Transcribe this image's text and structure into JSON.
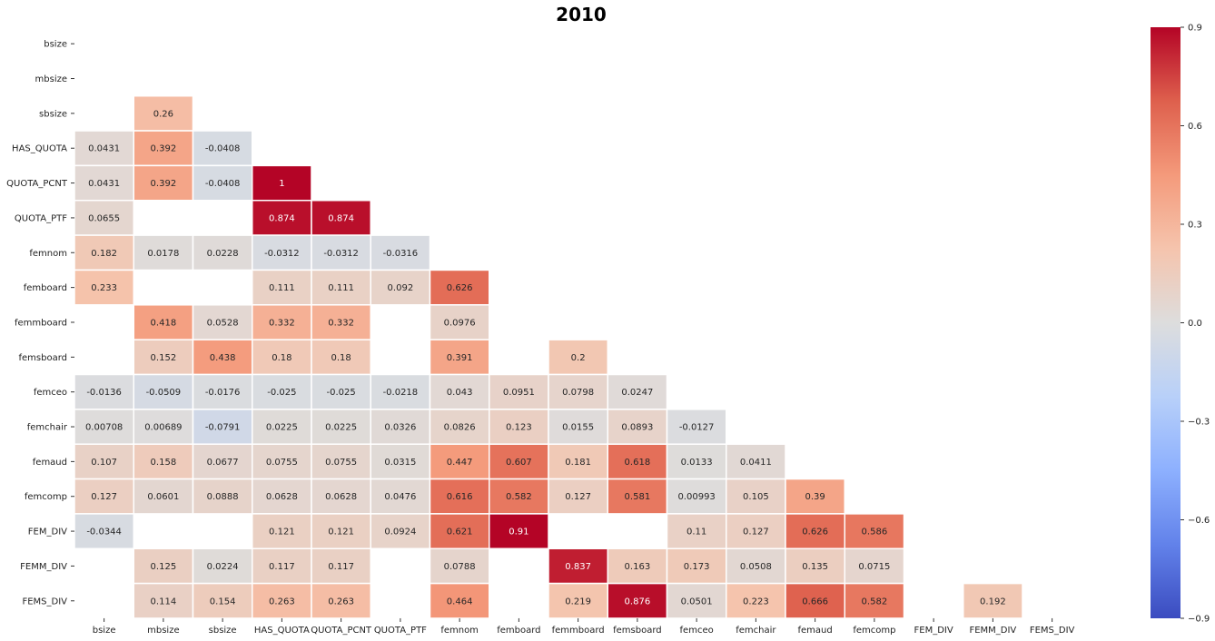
{
  "chart_data": {
    "type": "heatmap",
    "title": "2010",
    "variables": [
      "bsize",
      "mbsize",
      "sbsize",
      "HAS_QUOTA",
      "QUOTA_PCNT",
      "QUOTA_PTF",
      "femnom",
      "femboard",
      "femmboard",
      "femsboard",
      "femceo",
      "femchair",
      "femaud",
      "femcomp",
      "FEM_DIV",
      "FEMM_DIV",
      "FEMS_DIV"
    ],
    "xlabel": "",
    "ylabel": "",
    "colormap": "coolwarm",
    "vmin": -0.9,
    "vmax": 0.9,
    "colorbar_ticks": [
      "0.9",
      "0.6",
      "0.3",
      "0.0",
      "−0.3",
      "−0.6",
      "−0.9"
    ],
    "colorbar_tick_values": [
      0.9,
      0.6,
      0.3,
      0.0,
      -0.3,
      -0.6,
      -0.9
    ],
    "masked": "upper triangle, diagonal, and cells not shown",
    "cells": [
      {
        "row": 2,
        "col": 1,
        "value": 0.26,
        "label": "0.26"
      },
      {
        "row": 3,
        "col": 0,
        "value": 0.0431,
        "label": "0.0431"
      },
      {
        "row": 3,
        "col": 1,
        "value": 0.392,
        "label": "0.392"
      },
      {
        "row": 3,
        "col": 2,
        "value": -0.0408,
        "label": "-0.0408"
      },
      {
        "row": 4,
        "col": 0,
        "value": 0.0431,
        "label": "0.0431"
      },
      {
        "row": 4,
        "col": 1,
        "value": 0.392,
        "label": "0.392"
      },
      {
        "row": 4,
        "col": 2,
        "value": -0.0408,
        "label": "-0.0408"
      },
      {
        "row": 4,
        "col": 3,
        "value": 1,
        "label": "1"
      },
      {
        "row": 5,
        "col": 0,
        "value": 0.0655,
        "label": "0.0655"
      },
      {
        "row": 5,
        "col": 3,
        "value": 0.874,
        "label": "0.874"
      },
      {
        "row": 5,
        "col": 4,
        "value": 0.874,
        "label": "0.874"
      },
      {
        "row": 6,
        "col": 0,
        "value": 0.182,
        "label": "0.182"
      },
      {
        "row": 6,
        "col": 1,
        "value": 0.0178,
        "label": "0.0178"
      },
      {
        "row": 6,
        "col": 2,
        "value": 0.0228,
        "label": "0.0228"
      },
      {
        "row": 6,
        "col": 3,
        "value": -0.0312,
        "label": "-0.0312"
      },
      {
        "row": 6,
        "col": 4,
        "value": -0.0312,
        "label": "-0.0312"
      },
      {
        "row": 6,
        "col": 5,
        "value": -0.0316,
        "label": "-0.0316"
      },
      {
        "row": 7,
        "col": 0,
        "value": 0.233,
        "label": "0.233"
      },
      {
        "row": 7,
        "col": 3,
        "value": 0.111,
        "label": "0.111"
      },
      {
        "row": 7,
        "col": 4,
        "value": 0.111,
        "label": "0.111"
      },
      {
        "row": 7,
        "col": 5,
        "value": 0.092,
        "label": "0.092"
      },
      {
        "row": 7,
        "col": 6,
        "value": 0.626,
        "label": "0.626"
      },
      {
        "row": 8,
        "col": 1,
        "value": 0.418,
        "label": "0.418"
      },
      {
        "row": 8,
        "col": 2,
        "value": 0.0528,
        "label": "0.0528"
      },
      {
        "row": 8,
        "col": 3,
        "value": 0.332,
        "label": "0.332"
      },
      {
        "row": 8,
        "col": 4,
        "value": 0.332,
        "label": "0.332"
      },
      {
        "row": 8,
        "col": 6,
        "value": 0.0976,
        "label": "0.0976"
      },
      {
        "row": 9,
        "col": 1,
        "value": 0.152,
        "label": "0.152"
      },
      {
        "row": 9,
        "col": 2,
        "value": 0.438,
        "label": "0.438"
      },
      {
        "row": 9,
        "col": 3,
        "value": 0.18,
        "label": "0.18"
      },
      {
        "row": 9,
        "col": 4,
        "value": 0.18,
        "label": "0.18"
      },
      {
        "row": 9,
        "col": 6,
        "value": 0.391,
        "label": "0.391"
      },
      {
        "row": 9,
        "col": 8,
        "value": 0.2,
        "label": "0.2"
      },
      {
        "row": 10,
        "col": 0,
        "value": -0.0136,
        "label": "-0.0136"
      },
      {
        "row": 10,
        "col": 1,
        "value": -0.0509,
        "label": "-0.0509"
      },
      {
        "row": 10,
        "col": 2,
        "value": -0.0176,
        "label": "-0.0176"
      },
      {
        "row": 10,
        "col": 3,
        "value": -0.025,
        "label": "-0.025"
      },
      {
        "row": 10,
        "col": 4,
        "value": -0.025,
        "label": "-0.025"
      },
      {
        "row": 10,
        "col": 5,
        "value": -0.0218,
        "label": "-0.0218"
      },
      {
        "row": 10,
        "col": 6,
        "value": 0.043,
        "label": "0.043"
      },
      {
        "row": 10,
        "col": 7,
        "value": 0.0951,
        "label": "0.0951"
      },
      {
        "row": 10,
        "col": 8,
        "value": 0.0798,
        "label": "0.0798"
      },
      {
        "row": 10,
        "col": 9,
        "value": 0.0247,
        "label": "0.0247"
      },
      {
        "row": 11,
        "col": 0,
        "value": 0.00708,
        "label": "0.00708"
      },
      {
        "row": 11,
        "col": 1,
        "value": 0.00689,
        "label": "0.00689"
      },
      {
        "row": 11,
        "col": 2,
        "value": -0.0791,
        "label": "-0.0791"
      },
      {
        "row": 11,
        "col": 3,
        "value": 0.0225,
        "label": "0.0225"
      },
      {
        "row": 11,
        "col": 4,
        "value": 0.0225,
        "label": "0.0225"
      },
      {
        "row": 11,
        "col": 5,
        "value": 0.0326,
        "label": "0.0326"
      },
      {
        "row": 11,
        "col": 6,
        "value": 0.0826,
        "label": "0.0826"
      },
      {
        "row": 11,
        "col": 7,
        "value": 0.123,
        "label": "0.123"
      },
      {
        "row": 11,
        "col": 8,
        "value": 0.0155,
        "label": "0.0155"
      },
      {
        "row": 11,
        "col": 9,
        "value": 0.0893,
        "label": "0.0893"
      },
      {
        "row": 11,
        "col": 10,
        "value": -0.0127,
        "label": "-0.0127"
      },
      {
        "row": 12,
        "col": 0,
        "value": 0.107,
        "label": "0.107"
      },
      {
        "row": 12,
        "col": 1,
        "value": 0.158,
        "label": "0.158"
      },
      {
        "row": 12,
        "col": 2,
        "value": 0.0677,
        "label": "0.0677"
      },
      {
        "row": 12,
        "col": 3,
        "value": 0.0755,
        "label": "0.0755"
      },
      {
        "row": 12,
        "col": 4,
        "value": 0.0755,
        "label": "0.0755"
      },
      {
        "row": 12,
        "col": 5,
        "value": 0.0315,
        "label": "0.0315"
      },
      {
        "row": 12,
        "col": 6,
        "value": 0.447,
        "label": "0.447"
      },
      {
        "row": 12,
        "col": 7,
        "value": 0.607,
        "label": "0.607"
      },
      {
        "row": 12,
        "col": 8,
        "value": 0.181,
        "label": "0.181"
      },
      {
        "row": 12,
        "col": 9,
        "value": 0.618,
        "label": "0.618"
      },
      {
        "row": 12,
        "col": 10,
        "value": 0.0133,
        "label": "0.0133"
      },
      {
        "row": 12,
        "col": 11,
        "value": 0.0411,
        "label": "0.0411"
      },
      {
        "row": 13,
        "col": 0,
        "value": 0.127,
        "label": "0.127"
      },
      {
        "row": 13,
        "col": 1,
        "value": 0.0601,
        "label": "0.0601"
      },
      {
        "row": 13,
        "col": 2,
        "value": 0.0888,
        "label": "0.0888"
      },
      {
        "row": 13,
        "col": 3,
        "value": 0.0628,
        "label": "0.0628"
      },
      {
        "row": 13,
        "col": 4,
        "value": 0.0628,
        "label": "0.0628"
      },
      {
        "row": 13,
        "col": 5,
        "value": 0.0476,
        "label": "0.0476"
      },
      {
        "row": 13,
        "col": 6,
        "value": 0.616,
        "label": "0.616"
      },
      {
        "row": 13,
        "col": 7,
        "value": 0.582,
        "label": "0.582"
      },
      {
        "row": 13,
        "col": 8,
        "value": 0.127,
        "label": "0.127"
      },
      {
        "row": 13,
        "col": 9,
        "value": 0.581,
        "label": "0.581"
      },
      {
        "row": 13,
        "col": 10,
        "value": 0.00993,
        "label": "0.00993"
      },
      {
        "row": 13,
        "col": 11,
        "value": 0.105,
        "label": "0.105"
      },
      {
        "row": 13,
        "col": 12,
        "value": 0.39,
        "label": "0.39"
      },
      {
        "row": 14,
        "col": 0,
        "value": -0.0344,
        "label": "-0.0344"
      },
      {
        "row": 14,
        "col": 3,
        "value": 0.121,
        "label": "0.121"
      },
      {
        "row": 14,
        "col": 4,
        "value": 0.121,
        "label": "0.121"
      },
      {
        "row": 14,
        "col": 5,
        "value": 0.0924,
        "label": "0.0924"
      },
      {
        "row": 14,
        "col": 6,
        "value": 0.621,
        "label": "0.621"
      },
      {
        "row": 14,
        "col": 7,
        "value": 0.91,
        "label": "0.91"
      },
      {
        "row": 14,
        "col": 10,
        "value": 0.11,
        "label": "0.11"
      },
      {
        "row": 14,
        "col": 11,
        "value": 0.127,
        "label": "0.127"
      },
      {
        "row": 14,
        "col": 12,
        "value": 0.626,
        "label": "0.626"
      },
      {
        "row": 14,
        "col": 13,
        "value": 0.586,
        "label": "0.586"
      },
      {
        "row": 15,
        "col": 1,
        "value": 0.125,
        "label": "0.125"
      },
      {
        "row": 15,
        "col": 2,
        "value": 0.0224,
        "label": "0.0224"
      },
      {
        "row": 15,
        "col": 3,
        "value": 0.117,
        "label": "0.117"
      },
      {
        "row": 15,
        "col": 4,
        "value": 0.117,
        "label": "0.117"
      },
      {
        "row": 15,
        "col": 6,
        "value": 0.0788,
        "label": "0.0788"
      },
      {
        "row": 15,
        "col": 8,
        "value": 0.837,
        "label": "0.837"
      },
      {
        "row": 15,
        "col": 9,
        "value": 0.163,
        "label": "0.163"
      },
      {
        "row": 15,
        "col": 10,
        "value": 0.173,
        "label": "0.173"
      },
      {
        "row": 15,
        "col": 11,
        "value": 0.0508,
        "label": "0.0508"
      },
      {
        "row": 15,
        "col": 12,
        "value": 0.135,
        "label": "0.135"
      },
      {
        "row": 15,
        "col": 13,
        "value": 0.0715,
        "label": "0.0715"
      },
      {
        "row": 16,
        "col": 1,
        "value": 0.114,
        "label": "0.114"
      },
      {
        "row": 16,
        "col": 2,
        "value": 0.154,
        "label": "0.154"
      },
      {
        "row": 16,
        "col": 3,
        "value": 0.263,
        "label": "0.263"
      },
      {
        "row": 16,
        "col": 4,
        "value": 0.263,
        "label": "0.263"
      },
      {
        "row": 16,
        "col": 6,
        "value": 0.464,
        "label": "0.464"
      },
      {
        "row": 16,
        "col": 8,
        "value": 0.219,
        "label": "0.219"
      },
      {
        "row": 16,
        "col": 9,
        "value": 0.876,
        "label": "0.876"
      },
      {
        "row": 16,
        "col": 10,
        "value": 0.0501,
        "label": "0.0501"
      },
      {
        "row": 16,
        "col": 11,
        "value": 0.223,
        "label": "0.223"
      },
      {
        "row": 16,
        "col": 12,
        "value": 0.666,
        "label": "0.666"
      },
      {
        "row": 16,
        "col": 13,
        "value": 0.582,
        "label": "0.582"
      },
      {
        "row": 16,
        "col": 15,
        "value": 0.192,
        "label": "0.192"
      }
    ]
  }
}
